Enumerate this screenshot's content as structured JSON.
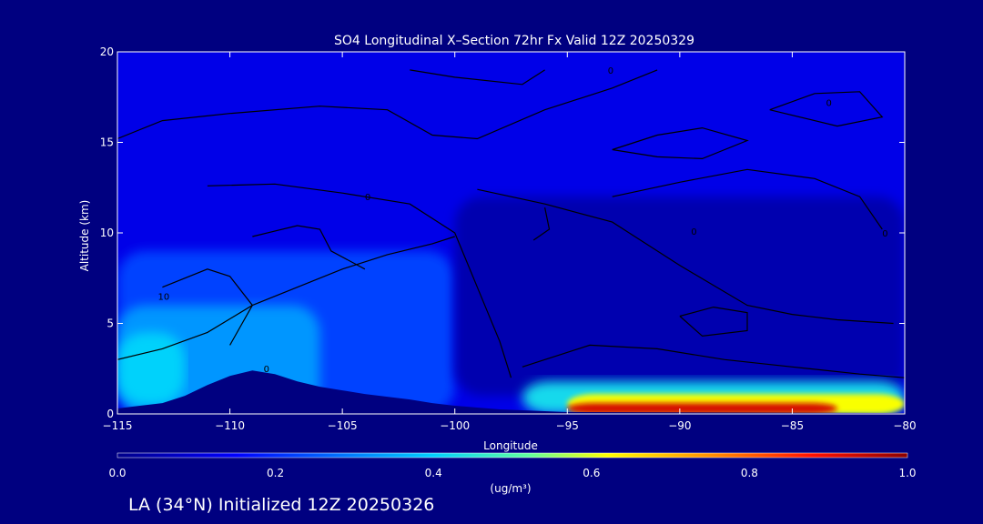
{
  "chart_data": {
    "type": "heatmap",
    "title": "SO4 Longitudinal X–Section 72hr  Fx Valid 12Z 20250329",
    "xlabel": "Longitude",
    "ylabel": "Altitude (km)",
    "xlim": [
      -115,
      -80
    ],
    "ylim": [
      0,
      20
    ],
    "x_ticks": [
      -115,
      -110,
      -105,
      -100,
      -95,
      -90,
      -85,
      -80
    ],
    "y_ticks": [
      0,
      5,
      10,
      15,
      20
    ],
    "colorbar": {
      "label": "(ug/m³)",
      "range": [
        0.0,
        1.0
      ],
      "ticks": [
        "0.0",
        "0.2",
        "0.4",
        "0.6",
        "0.8",
        "1.0"
      ],
      "colormap": [
        "#00008a",
        "#0000ff",
        "#0070ff",
        "#00d0ff",
        "#60ff9f",
        "#ffff00",
        "#ff9000",
        "#ff1000",
        "#8b0000"
      ]
    },
    "contour_labels": [
      "0",
      "10"
    ],
    "terrain": [
      [
        -115,
        0.3
      ],
      [
        -114,
        0.45
      ],
      [
        -113,
        0.6
      ],
      [
        -112,
        1.0
      ],
      [
        -111,
        1.6
      ],
      [
        -110,
        2.1
      ],
      [
        -109,
        2.4
      ],
      [
        -108,
        2.2
      ],
      [
        -107,
        1.8
      ],
      [
        -106,
        1.5
      ],
      [
        -105,
        1.3
      ],
      [
        -104,
        1.1
      ],
      [
        -103,
        0.95
      ],
      [
        -102,
        0.8
      ],
      [
        -101,
        0.6
      ],
      [
        -100,
        0.45
      ],
      [
        -99,
        0.35
      ],
      [
        -98,
        0.25
      ],
      [
        -97,
        0.2
      ],
      [
        -96,
        0.15
      ],
      [
        -95,
        0.1
      ],
      [
        -80,
        0.05
      ]
    ],
    "concentration_regions": [
      {
        "name": "upper-air",
        "value": 0.1,
        "x": [
          -115,
          -80
        ],
        "y": [
          0,
          20
        ]
      },
      {
        "name": "lower-west",
        "value": 0.2,
        "x": [
          -115,
          -100
        ],
        "y": [
          0,
          9
        ]
      },
      {
        "name": "west-plume",
        "value": 0.3,
        "x": [
          -115,
          -106
        ],
        "y": [
          0,
          6
        ]
      },
      {
        "name": "west-boundary",
        "value": 0.38,
        "x": [
          -115,
          -112
        ],
        "y": [
          0.5,
          4.5
        ]
      },
      {
        "name": "mid-level",
        "value": 0.04,
        "x": [
          -100,
          -80
        ],
        "y": [
          1,
          12
        ]
      },
      {
        "name": "surface-east",
        "value": 0.4,
        "x": [
          -97,
          -80
        ],
        "y": [
          0,
          1.8
        ]
      },
      {
        "name": "surface-east-core",
        "value": 0.62,
        "x": [
          -95,
          -80
        ],
        "y": [
          0,
          1.1
        ]
      },
      {
        "name": "surface-max",
        "value": 0.92,
        "x": [
          -95,
          -83
        ],
        "y": [
          0,
          0.6
        ]
      }
    ]
  },
  "footer": {
    "initialized": "LA (34°N) Initialized 12Z 20250326"
  },
  "colors": {
    "background": "#000080",
    "axis": "#ffffff",
    "contour": "#000000"
  }
}
